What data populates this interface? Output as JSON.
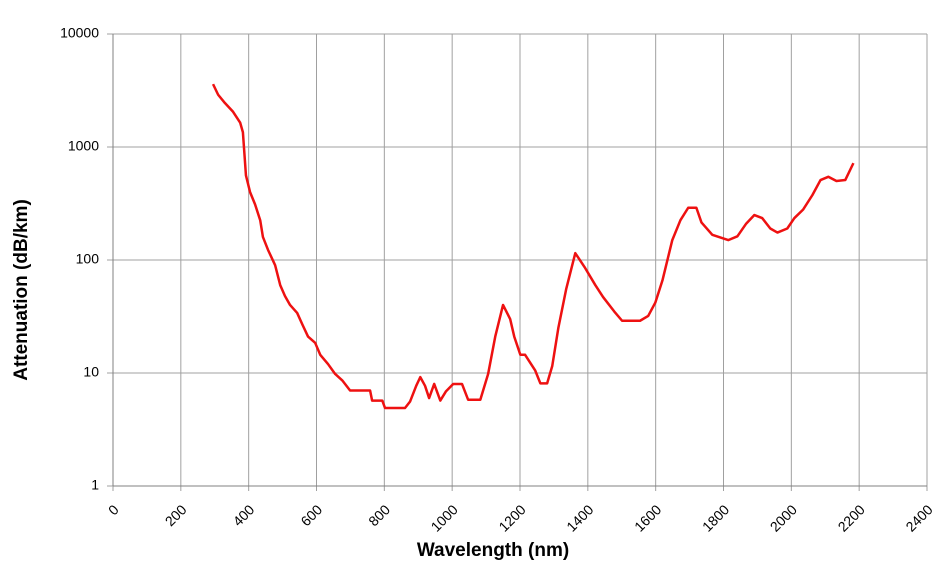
{
  "chart_data": {
    "type": "line",
    "x_label": "Wavelength (nm)",
    "y_label": "Attenuation (dB/km)",
    "x": [
      295,
      310,
      330,
      354,
      375,
      383,
      392,
      404,
      419,
      434,
      442,
      457,
      478,
      493,
      507,
      522,
      543,
      558,
      575,
      596,
      611,
      634,
      655,
      676,
      699,
      758,
      764,
      794,
      802,
      861,
      876,
      894,
      906,
      920,
      932,
      947,
      965,
      982,
      1003,
      1029,
      1047,
      1083,
      1106,
      1127,
      1150,
      1171,
      1183,
      1201,
      1215,
      1245,
      1260,
      1280,
      1295,
      1313,
      1336,
      1363,
      1392,
      1422,
      1445,
      1478,
      1501,
      1554,
      1578,
      1599,
      1620,
      1649,
      1673,
      1696,
      1720,
      1735,
      1767,
      1814,
      1841,
      1867,
      1891,
      1914,
      1938,
      1959,
      1988,
      2009,
      2035,
      2062,
      2086,
      2109,
      2133,
      2159,
      2183
    ],
    "series": [
      {
        "name": "Attenuation",
        "color": "#ee1111",
        "values": [
          3600,
          2900,
          2450,
          2050,
          1640,
          1350,
          560,
          400,
          310,
          225,
          160,
          123,
          90,
          60,
          48,
          40,
          34,
          27,
          21,
          18.5,
          14.5,
          12,
          9.8,
          8.6,
          7.0,
          7.0,
          5.7,
          5.7,
          4.9,
          4.9,
          5.6,
          7.7,
          9.2,
          7.7,
          6.0,
          8.0,
          5.7,
          6.9,
          8.0,
          8.0,
          5.8,
          5.8,
          9.8,
          21,
          40,
          30,
          21,
          14.5,
          14.5,
          10.5,
          8.1,
          8.1,
          11.5,
          25,
          55,
          115,
          85,
          60,
          47,
          35,
          29,
          29,
          32,
          42,
          66,
          150,
          225,
          290,
          290,
          215,
          167,
          150,
          162,
          210,
          250,
          235,
          190,
          175,
          190,
          235,
          280,
          375,
          510,
          545,
          500,
          510,
          720
        ]
      }
    ],
    "xlim": [
      0,
      2400
    ],
    "xticks": [
      0,
      200,
      400,
      600,
      800,
      1000,
      1200,
      1400,
      1600,
      1800,
      2000,
      2200,
      2400
    ],
    "ylim": [
      1,
      10000
    ],
    "yticks": [
      1,
      10,
      100,
      1000,
      10000
    ],
    "y_scale": "log",
    "grid": true
  }
}
